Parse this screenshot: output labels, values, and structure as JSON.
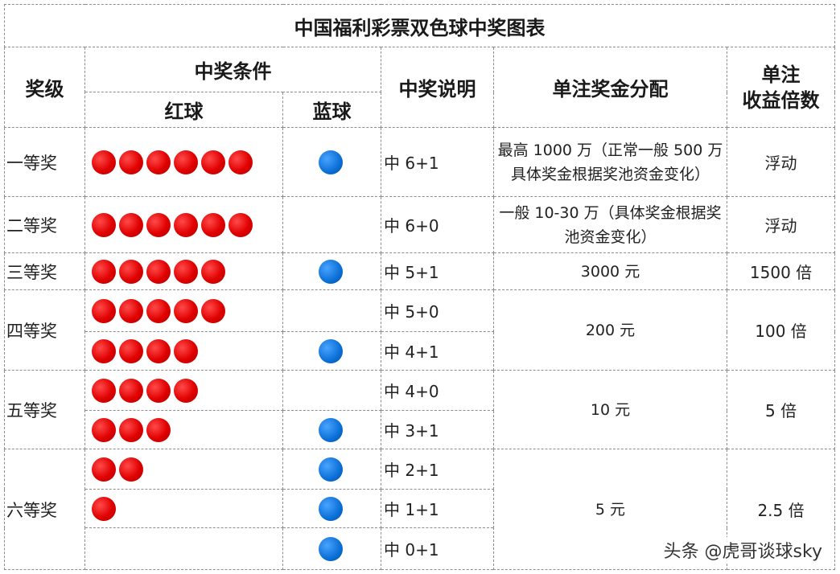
{
  "title": "中国福利彩票双色球中奖图表",
  "headers": {
    "level": "奖级",
    "condition": "中奖条件",
    "red": "红球",
    "blue": "蓝球",
    "description": "中奖说明",
    "prize": "单注奖金分配",
    "multiplier": "单注\n收益倍数"
  },
  "levels": [
    {
      "name": "一等奖",
      "prize": "最高 1000 万（正常一般 500 万具体奖金根据奖池资金变化）",
      "multiplier": "浮动",
      "rows": [
        {
          "red": 6,
          "blue": 1,
          "desc": "中 6+1"
        }
      ]
    },
    {
      "name": "二等奖",
      "prize": "一般 10-30 万（具体奖金根据奖池资金变化）",
      "multiplier": "浮动",
      "rows": [
        {
          "red": 6,
          "blue": 0,
          "desc": "中 6+0"
        }
      ]
    },
    {
      "name": "三等奖",
      "prize": "3000 元",
      "multiplier": "1500 倍",
      "rows": [
        {
          "red": 5,
          "blue": 1,
          "desc": "中 5+1"
        }
      ]
    },
    {
      "name": "四等奖",
      "prize": "200 元",
      "multiplier": "100 倍",
      "rows": [
        {
          "red": 5,
          "blue": 0,
          "desc": "中 5+0"
        },
        {
          "red": 4,
          "blue": 1,
          "desc": "中 4+1"
        }
      ]
    },
    {
      "name": "五等奖",
      "prize": "10 元",
      "multiplier": "5 倍",
      "rows": [
        {
          "red": 4,
          "blue": 0,
          "desc": "中 4+0"
        },
        {
          "red": 3,
          "blue": 1,
          "desc": "中 3+1"
        }
      ]
    },
    {
      "name": "六等奖",
      "prize": "5 元",
      "multiplier": "2.5 倍",
      "rows": [
        {
          "red": 2,
          "blue": 1,
          "desc": "中 2+1"
        },
        {
          "red": 1,
          "blue": 1,
          "desc": "中 1+1"
        },
        {
          "red": 0,
          "blue": 1,
          "desc": "中 0+1"
        }
      ]
    }
  ],
  "colors": {
    "red_ball": "#e00000",
    "blue_ball": "#0a6fd6"
  },
  "watermark": "头条 @虎哥谈球sky"
}
